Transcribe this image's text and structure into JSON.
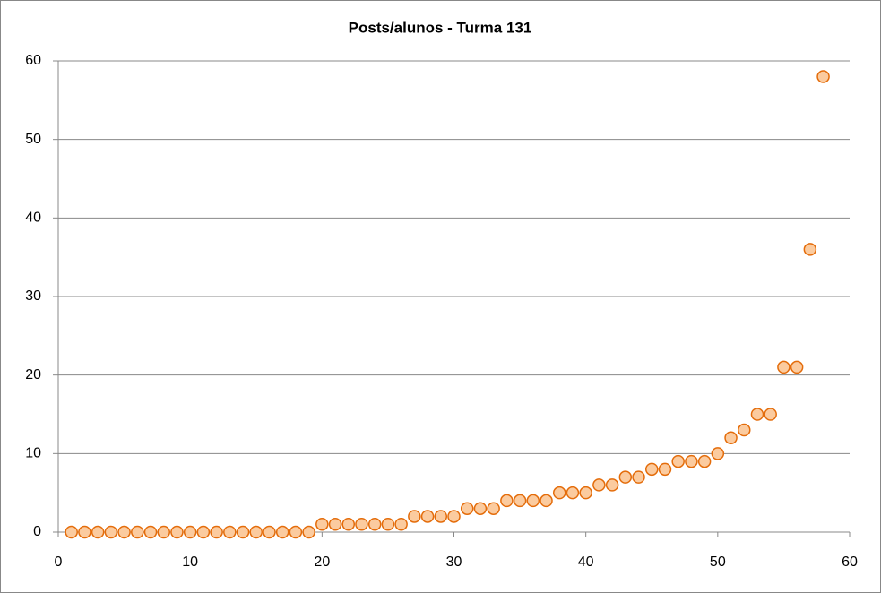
{
  "chart_data": {
    "type": "scatter",
    "title": "Posts/alunos - Turma 131",
    "x": [
      1,
      2,
      3,
      4,
      5,
      6,
      7,
      8,
      9,
      10,
      11,
      12,
      13,
      14,
      15,
      16,
      17,
      18,
      19,
      20,
      21,
      22,
      23,
      24,
      25,
      26,
      27,
      28,
      29,
      30,
      31,
      32,
      33,
      34,
      35,
      36,
      37,
      38,
      39,
      40,
      41,
      42,
      43,
      44,
      45,
      46,
      47,
      48,
      49,
      50,
      51,
      52,
      53,
      54,
      55,
      56,
      57,
      58
    ],
    "values": [
      0,
      0,
      0,
      0,
      0,
      0,
      0,
      0,
      0,
      0,
      0,
      0,
      0,
      0,
      0,
      0,
      0,
      0,
      0,
      1,
      1,
      1,
      1,
      1,
      1,
      1,
      2,
      2,
      2,
      2,
      3,
      3,
      3,
      4,
      4,
      4,
      4,
      5,
      5,
      5,
      6,
      6,
      7,
      7,
      8,
      8,
      9,
      9,
      9,
      10,
      12,
      13,
      15,
      15,
      21,
      21,
      36,
      58
    ],
    "color": "#fbcb9f",
    "edge_color": "#e46c0a",
    "xlim": [
      0,
      60
    ],
    "xticks": [
      0,
      10,
      20,
      30,
      40,
      50,
      60
    ],
    "ylim": [
      0,
      60
    ],
    "yticks": [
      0,
      10,
      20,
      30,
      40,
      50,
      60
    ],
    "grid": true
  }
}
